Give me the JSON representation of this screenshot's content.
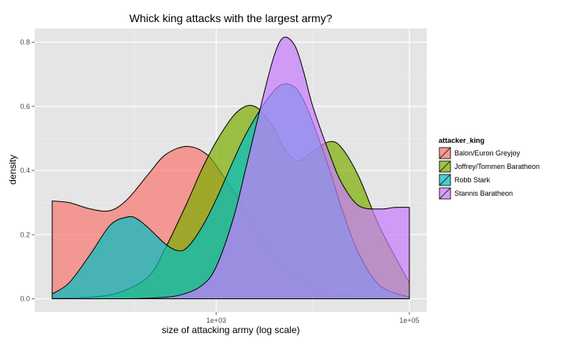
{
  "chart_data": {
    "type": "area",
    "title": "Whick king attacks with the largest army?",
    "xlabel": "size of attacking army (log scale)",
    "ylabel": "density",
    "x_scale": "log10",
    "xlim": [
      20,
      100000
    ],
    "ylim": [
      0,
      0.85
    ],
    "x_ticks": [
      {
        "value": 1000,
        "label": "1e+03"
      },
      {
        "value": 100000,
        "label": "1e+05"
      }
    ],
    "y_ticks": [
      {
        "value": 0,
        "label": "0.0"
      },
      {
        "value": 0.2,
        "label": "0.2"
      },
      {
        "value": 0.4,
        "label": "0.4"
      },
      {
        "value": 0.6,
        "label": "0.6"
      },
      {
        "value": 0.8,
        "label": "0.8"
      }
    ],
    "grid": true,
    "legend": {
      "title": "attacker_king",
      "position": "right"
    },
    "series": [
      {
        "name": "Balon/Euron Greyjoy",
        "color": "#F8766D",
        "x": [
          20,
          30,
          50,
          80,
          120,
          200,
          300,
          500,
          800,
          1200,
          2000,
          3000,
          5000,
          8000,
          12000,
          20000,
          50000,
          100000
        ],
        "values": [
          0.305,
          0.3,
          0.28,
          0.275,
          0.31,
          0.39,
          0.45,
          0.475,
          0.45,
          0.38,
          0.28,
          0.19,
          0.11,
          0.06,
          0.03,
          0.012,
          0.003,
          0.001
        ]
      },
      {
        "name": "Joffrey/Tommen Baratheon",
        "color": "#7CAE00",
        "x": [
          20,
          50,
          100,
          200,
          300,
          500,
          700,
          1000,
          1500,
          2000,
          2500,
          3000,
          4000,
          5000,
          7000,
          10000,
          15000,
          20000,
          30000,
          50000,
          100000
        ],
        "values": [
          0.002,
          0.005,
          0.02,
          0.07,
          0.16,
          0.3,
          0.4,
          0.49,
          0.57,
          0.6,
          0.6,
          0.58,
          0.53,
          0.47,
          0.43,
          0.46,
          0.49,
          0.47,
          0.38,
          0.22,
          0.05
        ]
      },
      {
        "name": "Robb Stark",
        "color": "#00BFC4",
        "x": [
          20,
          30,
          50,
          80,
          120,
          150,
          200,
          300,
          400,
          500,
          700,
          1000,
          1500,
          2000,
          3000,
          4000,
          5000,
          6500,
          8000,
          10000,
          15000,
          20000,
          30000,
          50000,
          100000
        ],
        "values": [
          0.015,
          0.05,
          0.14,
          0.23,
          0.255,
          0.25,
          0.22,
          0.17,
          0.15,
          0.16,
          0.22,
          0.31,
          0.43,
          0.51,
          0.6,
          0.65,
          0.67,
          0.66,
          0.62,
          0.55,
          0.4,
          0.28,
          0.14,
          0.04,
          0.005
        ]
      },
      {
        "name": "Stannis Baratheon",
        "color": "#C77CFF",
        "x": [
          20,
          100,
          200,
          400,
          700,
          1000,
          1500,
          2000,
          3000,
          4000,
          5000,
          6500,
          8000,
          10000,
          15000,
          20000,
          30000,
          50000,
          70000,
          100000
        ],
        "values": [
          0.0,
          0.0,
          0.002,
          0.01,
          0.04,
          0.1,
          0.25,
          0.4,
          0.62,
          0.76,
          0.815,
          0.79,
          0.71,
          0.6,
          0.45,
          0.36,
          0.29,
          0.28,
          0.285,
          0.285
        ]
      }
    ]
  }
}
